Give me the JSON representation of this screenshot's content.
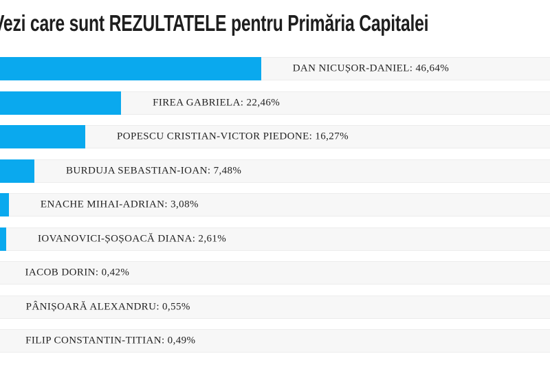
{
  "page": {
    "title": "Vezi care sunt REZULTATELE pentru Primăria Capitalei"
  },
  "chart_data": {
    "type": "bar",
    "orientation": "horizontal",
    "title": "Vezi care sunt REZULTATELE pentru Primăria Capitalei",
    "categories": [
      "DAN NICUȘOR-DANIEL",
      "FIREA GABRIELA",
      "POPESCU CRISTIAN-VICTOR PIEDONE",
      "BURDUJA SEBASTIAN-IOAN",
      "ENACHE MIHAI-ADRIAN",
      "IOVANOVICI-ȘOȘOACĂ DIANA",
      "IACOB DORIN",
      "PÂNIȘOARĂ ALEXANDRU",
      "FILIP CONSTANTIN-TITIAN"
    ],
    "values": [
      46.64,
      22.46,
      16.27,
      7.48,
      3.08,
      2.61,
      0.42,
      0.55,
      0.49
    ],
    "labels": [
      "DAN NICUȘOR-DANIEL: 46,64%",
      "FIREA GABRIELA: 22,46%",
      "POPESCU CRISTIAN-VICTOR PIEDONE: 16,27%",
      "BURDUJA SEBASTIAN-IOAN: 7,48%",
      "ENACHE MIHAI-ADRIAN: 3,08%",
      "IOVANOVICI-ȘOȘOACĂ DIANA: 2,61%",
      "IACOB DORIN: 0,42%",
      "PÂNIȘOARĂ ALEXANDRU: 0,55%",
      "FILIP CONSTANTIN-TITIAN: 0,49%"
    ],
    "xlim": [
      0,
      100
    ],
    "grid": false,
    "legend": false,
    "bar_color": "#0aa9ee",
    "row_bg_color": "#f7f7f7",
    "label_color": "#222222",
    "title_color": "#1e1e1e"
  }
}
